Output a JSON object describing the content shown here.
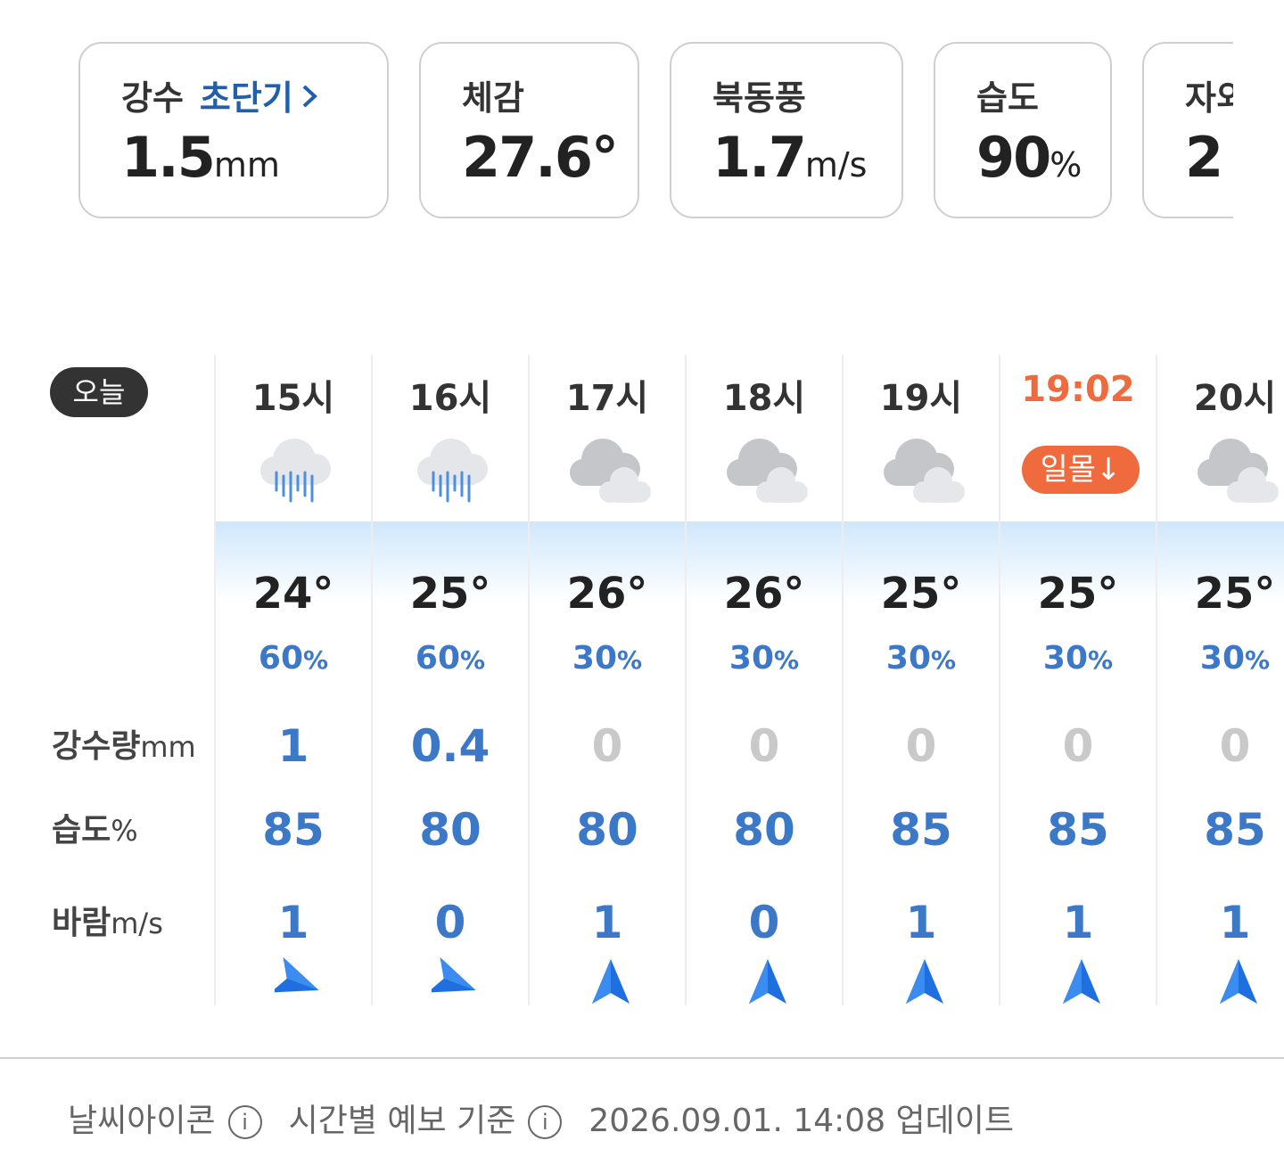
{
  "cards": [
    {
      "label": "강수",
      "link": "초단기",
      "value": "1.5",
      "unit": "mm"
    },
    {
      "label": "체감",
      "value": "27.6°"
    },
    {
      "label": "북동풍",
      "value": "1.7",
      "unit": "m/s"
    },
    {
      "label": "습도",
      "value": "90",
      "unit": "%"
    },
    {
      "label": "자외",
      "value": "2"
    }
  ],
  "hourly": {
    "today": "오늘",
    "pop_unit": "%",
    "rows": [
      {
        "label": "강수량",
        "unit": "mm"
      },
      {
        "label": "습도",
        "unit": "%"
      },
      {
        "label": "바람",
        "unit": "m/s"
      }
    ],
    "hours": [
      {
        "time": "15시",
        "temp": "24°",
        "pop": "60",
        "precip": "1",
        "humidity": "85",
        "wind": "1"
      },
      {
        "time": "16시",
        "temp": "25°",
        "pop": "60",
        "precip": "0.4",
        "humidity": "80",
        "wind": "0"
      },
      {
        "time": "17시",
        "temp": "26°",
        "pop": "30",
        "precip": "0",
        "humidity": "80",
        "wind": "1"
      },
      {
        "time": "18시",
        "temp": "26°",
        "pop": "30",
        "precip": "0",
        "humidity": "80",
        "wind": "0"
      },
      {
        "time": "19시",
        "temp": "25°",
        "pop": "30",
        "precip": "0",
        "humidity": "85",
        "wind": "1"
      },
      {
        "time": "19:02",
        "badge": "일몰↓",
        "temp": "25°",
        "pop": "30",
        "precip": "0",
        "humidity": "85",
        "wind": "1"
      },
      {
        "time": "20시",
        "temp": "25°",
        "pop": "30",
        "precip": "0",
        "humidity": "85",
        "wind": "1"
      }
    ]
  },
  "footer": {
    "icon_info": "날씨아이콘",
    "basis": "시간별 예보 기준",
    "updated": "2026.09.01. 14:08 업데이트"
  }
}
